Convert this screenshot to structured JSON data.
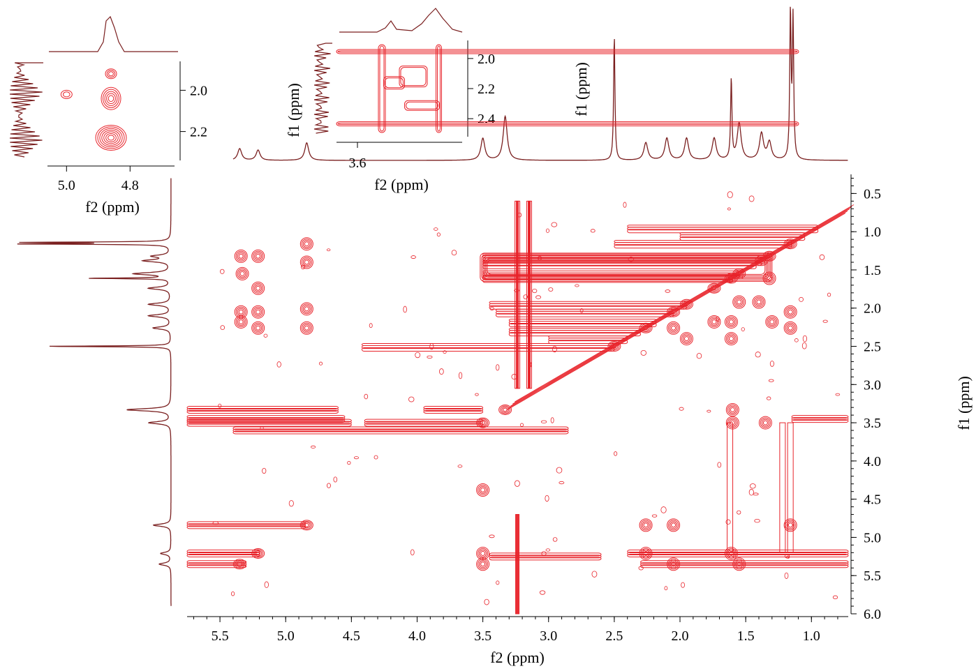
{
  "colors": {
    "contour": "#e8232a",
    "spectrum": "#7a1f1f",
    "axis": "#000000"
  },
  "chart_data": [
    {
      "type": "heatmap",
      "subtype": "2D NMR contour plot (COSY)",
      "xlabel": "f2 (ppm)",
      "ylabel": "f1 (ppm)",
      "xlim": [
        5.75,
        0.72
      ],
      "ylim": [
        0.25,
        6.0
      ],
      "x_ticks": [
        "5.5",
        "5.0",
        "4.5",
        "4.0",
        "3.5",
        "3.0",
        "2.5",
        "2.0",
        "1.5",
        "1.0"
      ],
      "y_ticks": [
        "0.5",
        "1.0",
        "1.5",
        "2.0",
        "2.5",
        "3.0",
        "3.5",
        "4.0",
        "4.5",
        "5.0",
        "5.5",
        "6.0"
      ],
      "x_tick_values": [
        5.5,
        5.0,
        4.5,
        4.0,
        3.5,
        3.0,
        2.5,
        2.0,
        1.5,
        1.0
      ],
      "y_tick_values": [
        0.5,
        1.0,
        1.5,
        2.0,
        2.5,
        3.0,
        3.5,
        4.0,
        4.5,
        5.0,
        5.5,
        6.0
      ],
      "grid": false,
      "diagonal_peaks": [
        [
          5.35,
          5.35
        ],
        [
          5.21,
          5.21
        ],
        [
          4.84,
          4.84
        ],
        [
          3.5,
          3.5
        ],
        [
          3.33,
          3.33
        ],
        [
          2.5,
          2.5
        ],
        [
          2.26,
          2.26
        ],
        [
          2.05,
          2.05
        ],
        [
          1.95,
          1.95
        ],
        [
          1.74,
          1.74
        ],
        [
          1.61,
          1.61
        ],
        [
          1.55,
          1.55
        ],
        [
          1.38,
          1.38
        ],
        [
          1.32,
          1.32
        ],
        [
          1.16,
          1.16
        ]
      ],
      "cross_peaks": [
        [
          5.34,
          1.32
        ],
        [
          5.33,
          1.55
        ],
        [
          5.21,
          1.32
        ],
        [
          5.21,
          1.74
        ],
        [
          5.34,
          2.05
        ],
        [
          5.21,
          2.05
        ],
        [
          5.34,
          2.18
        ],
        [
          5.21,
          2.26
        ],
        [
          4.84,
          1.16
        ],
        [
          4.84,
          2.01
        ],
        [
          4.84,
          2.26
        ],
        [
          4.84,
          1.4
        ],
        [
          2.26,
          4.84
        ],
        [
          2.05,
          4.84
        ],
        [
          2.26,
          5.21
        ],
        [
          2.05,
          5.35
        ],
        [
          1.61,
          5.21
        ],
        [
          1.55,
          5.35
        ],
        [
          1.16,
          4.84
        ],
        [
          1.16,
          2.05
        ],
        [
          1.16,
          2.26
        ],
        [
          1.6,
          3.5
        ],
        [
          1.35,
          3.5
        ],
        [
          1.6,
          3.33
        ],
        [
          3.5,
          4.38
        ],
        [
          3.5,
          5.21
        ],
        [
          3.5,
          5.35
        ],
        [
          2.05,
          2.26
        ],
        [
          1.95,
          2.4
        ],
        [
          1.74,
          2.18
        ],
        [
          1.61,
          2.4
        ],
        [
          1.55,
          1.92
        ],
        [
          1.4,
          1.92
        ],
        [
          1.3,
          2.18
        ],
        [
          1.32,
          1.61
        ],
        [
          1.61,
          2.18
        ]
      ]
    },
    {
      "type": "line",
      "subtype": "inset zoom 1",
      "xlabel": "f2 (ppm)",
      "x_ticks": [
        "5.0",
        "4.8"
      ],
      "y_ticks": [
        "2.0",
        "2.2"
      ],
      "xlim": [
        5.06,
        4.66
      ],
      "ylim": [
        1.86,
        2.34
      ],
      "peaks": [
        [
          4.86,
          2.01
        ],
        [
          4.86,
          1.92
        ],
        [
          4.86,
          2.23
        ]
      ]
    },
    {
      "type": "line",
      "subtype": "inset zoom 2",
      "xlabel": "f2 (ppm)",
      "ylabel": "f1 (ppm)",
      "x_ticks": [
        "3.6"
      ],
      "y_ticks": [
        "2.0",
        "2.2",
        "2.4"
      ],
      "xlim": [
        3.68,
        3.2
      ],
      "ylim": [
        1.88,
        2.52
      ]
    },
    {
      "type": "line",
      "subtype": "top 1D projection",
      "ylabel": "f1 (ppm)",
      "peaks": [
        [
          5.35,
          0.08
        ],
        [
          5.21,
          0.07
        ],
        [
          4.84,
          0.12
        ],
        [
          3.5,
          0.15
        ],
        [
          3.33,
          0.3
        ],
        [
          2.5,
          0.85
        ],
        [
          2.26,
          0.12
        ],
        [
          2.1,
          0.15
        ],
        [
          1.95,
          0.15
        ],
        [
          1.74,
          0.15
        ],
        [
          1.61,
          0.55
        ],
        [
          1.55,
          0.25
        ],
        [
          1.38,
          0.18
        ],
        [
          1.32,
          0.12
        ],
        [
          1.16,
          1.0
        ],
        [
          1.14,
          0.95
        ]
      ]
    }
  ]
}
